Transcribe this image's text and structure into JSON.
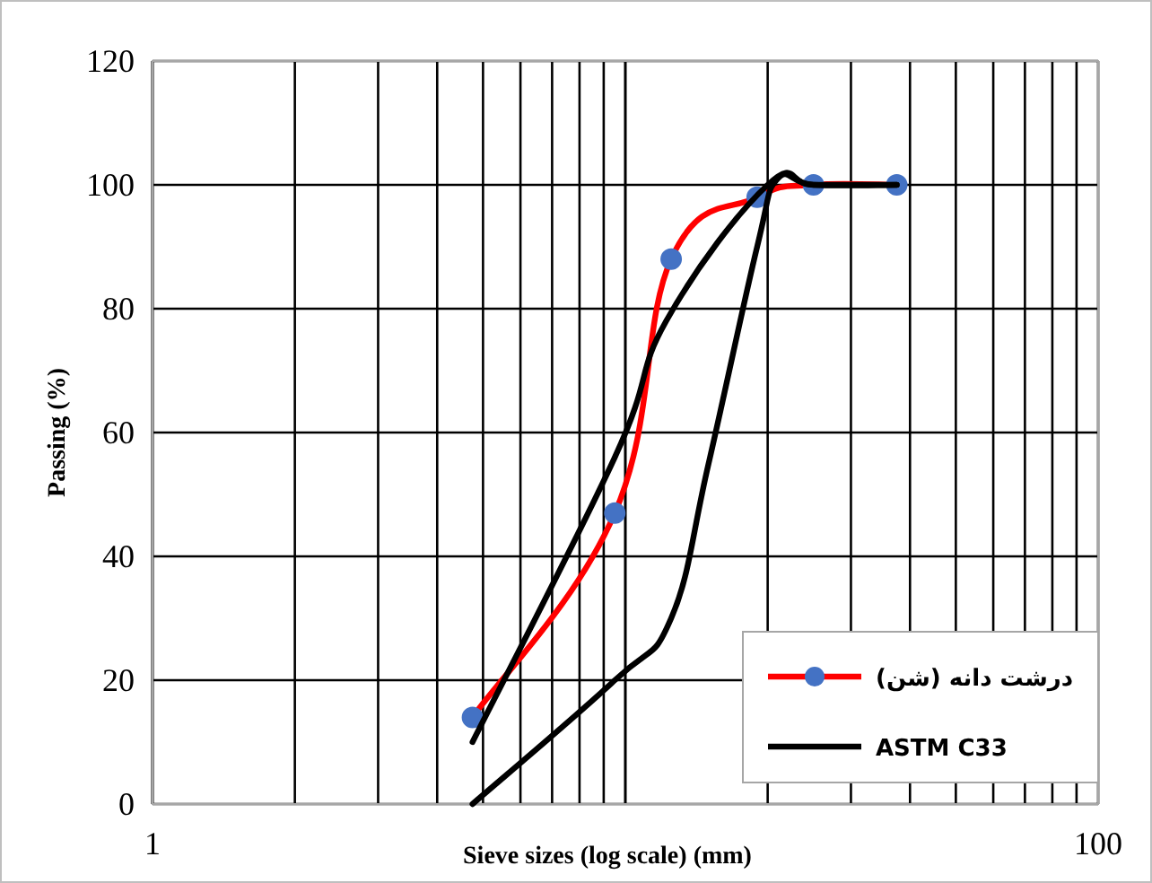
{
  "chart_data": {
    "type": "line",
    "xlabel": "Sieve sizes (log scale) (mm)",
    "ylabel": "Passing (%)",
    "log": "x",
    "xlim": [
      1,
      100
    ],
    "ylim": [
      0,
      120
    ],
    "xticks": [
      1,
      {
        "value": 10,
        "label": null
      },
      100
    ],
    "yticks": [
      0,
      20,
      40,
      60,
      80,
      100,
      120
    ],
    "grid": true,
    "legend": "bottom right",
    "series": [
      {
        "name": "درشت دانه (شن)",
        "color": "#ff0000",
        "marker": "circle",
        "x": [
          4.75,
          9.5,
          12.5,
          19,
          25,
          37.5
        ],
        "values": [
          14,
          47,
          88,
          98,
          100,
          100
        ]
      },
      {
        "name": "ASTM C33",
        "color": "#000000",
        "marker": "none",
        "x": [
          4.75,
          9.5,
          12.2,
          20,
          25,
          37.5
        ],
        "values": [
          10,
          56,
          78,
          100,
          100,
          100
        ]
      },
      {
        "color": "#000000",
        "marker": "none",
        "x": [
          4.75,
          9.5,
          12.5,
          15,
          19,
          21,
          25,
          37.5
        ],
        "values": [
          0,
          20,
          30,
          55,
          90,
          101,
          100,
          100
        ]
      }
    ]
  }
}
